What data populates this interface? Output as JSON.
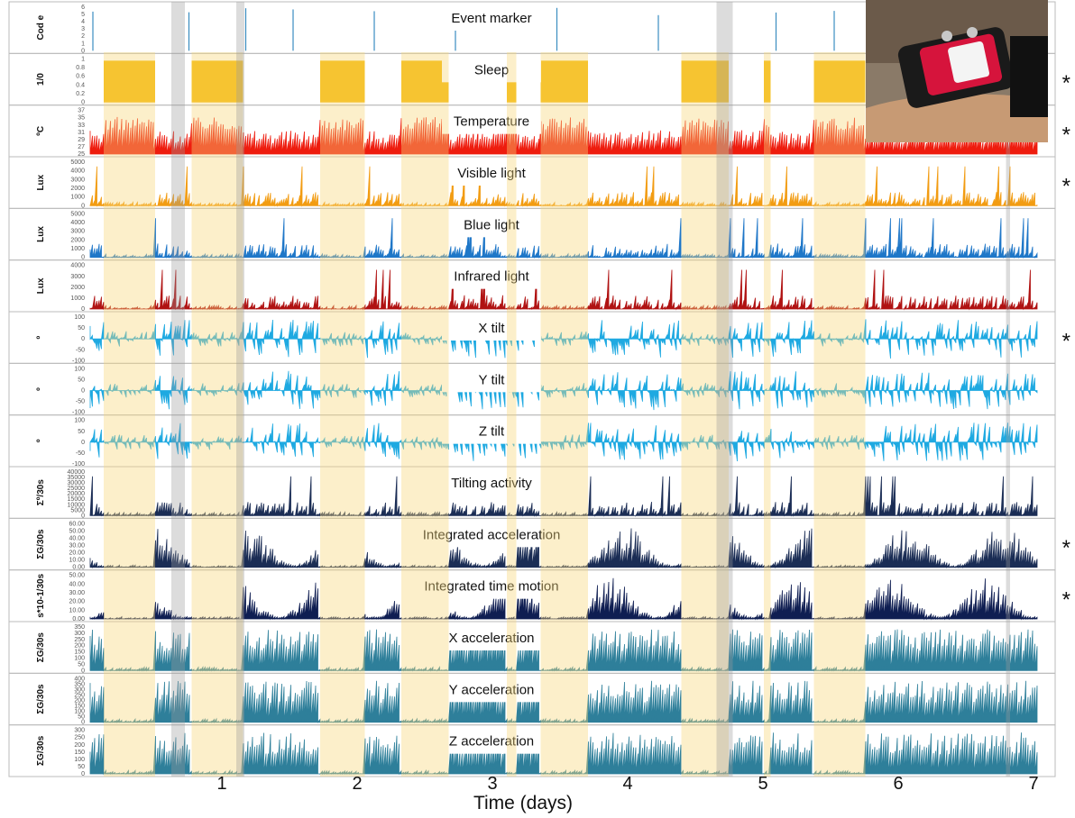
{
  "chart_data": {
    "type": "multi-panel time series (actigraphy recording)",
    "xlabel": "Time (days)",
    "xlim": [
      0,
      7
    ],
    "day_ticks": [
      "1",
      "2",
      "3",
      "4",
      "5",
      "6",
      "7"
    ],
    "day_tick_values": [
      1,
      2,
      3,
      4,
      5,
      6,
      7
    ],
    "sleep_bands_days": [
      [
        0.1,
        0.48
      ],
      [
        0.75,
        1.13
      ],
      [
        1.7,
        2.03
      ],
      [
        2.3,
        2.65
      ],
      [
        3.08,
        3.15
      ],
      [
        3.33,
        3.68
      ],
      [
        4.37,
        4.72
      ],
      [
        4.98,
        5.03
      ],
      [
        5.35,
        5.73
      ]
    ],
    "off_wrist_bands_days": [
      [
        0.6,
        0.7
      ],
      [
        1.08,
        1.14
      ],
      [
        4.63,
        4.75
      ],
      [
        6.77,
        6.8
      ]
    ],
    "panels": [
      {
        "id": "event",
        "title": "Event marker",
        "ylabel": "Cod e",
        "ticks": [
          "0",
          "1",
          "2",
          "3",
          "4",
          "5",
          "6"
        ],
        "style": "spikes",
        "color": "#3a8dc0",
        "ylim": [
          0,
          6
        ],
        "marked": false
      },
      {
        "id": "sleep",
        "title": "Sleep",
        "ylabel": "1/0",
        "ticks": [
          "0",
          "0.2",
          "0.4",
          "0.6",
          "0.8",
          "1"
        ],
        "style": "binary",
        "color": "#f5b800",
        "ylim": [
          0,
          1
        ],
        "marked": true
      },
      {
        "id": "temp",
        "title": "Temperature",
        "ylabel": "ºC",
        "ticks": [
          "25",
          "27",
          "29",
          "31",
          "33",
          "35",
          "37"
        ],
        "style": "area",
        "color": "#ee1c0e",
        "ylim": [
          25,
          37
        ],
        "marked": true
      },
      {
        "id": "vis",
        "title": "Visible light",
        "ylabel": "Lux",
        "ticks": [
          "0",
          "1000",
          "2000",
          "3000",
          "4000",
          "5000"
        ],
        "style": "bars",
        "color": "#f29c12",
        "ylim": [
          0,
          5000
        ],
        "marked": true
      },
      {
        "id": "blue",
        "title": "Blue light",
        "ylabel": "Lux",
        "ticks": [
          "0",
          "1000",
          "2000",
          "3000",
          "4000",
          "5000"
        ],
        "style": "bars",
        "color": "#1f77c8",
        "ylim": [
          0,
          5000
        ],
        "marked": false
      },
      {
        "id": "ir",
        "title": "Infrared light",
        "ylabel": "Lux",
        "ticks": [
          "0",
          "1000",
          "2000",
          "3000",
          "4000"
        ],
        "style": "bars",
        "color": "#b01212",
        "ylim": [
          0,
          4000
        ],
        "marked": false
      },
      {
        "id": "xtilt",
        "title": "X tilt",
        "ylabel": "º",
        "ticks": [
          "-100",
          "-50",
          "0",
          "50",
          "100"
        ],
        "style": "signed",
        "color": "#1ea9e1",
        "ylim": [
          -100,
          100
        ],
        "marked": true
      },
      {
        "id": "ytilt",
        "title": "Y tilt",
        "ylabel": "º",
        "ticks": [
          "-100",
          "-50",
          "0",
          "50",
          "100"
        ],
        "style": "signed",
        "color": "#1ea9e1",
        "ylim": [
          -100,
          100
        ],
        "marked": false
      },
      {
        "id": "ztilt",
        "title": "Z tilt",
        "ylabel": "º",
        "ticks": [
          "-100",
          "-50",
          "0",
          "50",
          "100"
        ],
        "style": "signed",
        "color": "#1ea9e1",
        "ylim": [
          -100,
          100
        ],
        "marked": false
      },
      {
        "id": "tiltact",
        "title": "Tilting activity",
        "ylabel": "Σº/30s",
        "ticks": [
          "0",
          "5000",
          "10000",
          "15000",
          "20000",
          "25000",
          "30000",
          "35000",
          "40000"
        ],
        "style": "bars",
        "color": "#1b2d55",
        "ylim": [
          0,
          40000
        ],
        "marked": false
      },
      {
        "id": "intacc",
        "title": "Integrated acceleration",
        "ylabel": "ΣG/30s",
        "ticks": [
          "0.00",
          "10.00",
          "20.00",
          "30.00",
          "40.00",
          "50.00",
          "60.00"
        ],
        "style": "area",
        "color": "#1b2d55",
        "ylim": [
          0,
          60
        ],
        "marked": true
      },
      {
        "id": "itm",
        "title": "Integrated time motion",
        "ylabel": "s*10-1/30s",
        "ticks": [
          "0.00",
          "10.00",
          "20.00",
          "30.00",
          "40.00",
          "50.00"
        ],
        "style": "area",
        "color": "#0f1e52",
        "ylim": [
          0,
          50
        ],
        "marked": true
      },
      {
        "id": "xacc",
        "title": "X acceleration",
        "ylabel": "ΣG/30s",
        "ticks": [
          "0",
          "50",
          "100",
          "150",
          "200",
          "250",
          "300",
          "350"
        ],
        "style": "bars",
        "color": "#2e7f9a",
        "ylim": [
          0,
          350
        ],
        "marked": false
      },
      {
        "id": "yacc",
        "title": "Y acceleration",
        "ylabel": "ΣG/30s",
        "ticks": [
          "0",
          "50",
          "100",
          "150",
          "200",
          "250",
          "300",
          "350",
          "400"
        ],
        "style": "bars",
        "color": "#2e7f9a",
        "ylim": [
          0,
          400
        ],
        "marked": false
      },
      {
        "id": "zacc",
        "title": "Z  acceleration",
        "ylabel": "ΣG/30s",
        "ticks": [
          "0",
          "50",
          "100",
          "150",
          "200",
          "250",
          "300"
        ],
        "style": "bars",
        "color": "#2e7f9a",
        "ylim": [
          0,
          300
        ],
        "marked": false
      }
    ],
    "marker": "*",
    "photo": "wrist-worn actigraphy device"
  }
}
